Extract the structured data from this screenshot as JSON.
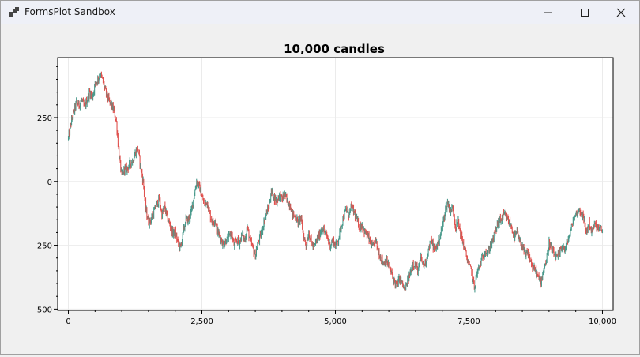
{
  "window": {
    "title": "FormsPlot Sandbox",
    "icons": {
      "app": "formsplot-app-icon",
      "minimize": "minimize-icon",
      "maximize": "maximize-icon",
      "close": "close-icon"
    }
  },
  "chart_data": {
    "type": "candlestick",
    "title": "10,000 candles",
    "xlabel": "",
    "ylabel": "",
    "xlim": [
      -200,
      10200
    ],
    "ylim": [
      -505,
      485
    ],
    "x_ticks": [
      0,
      2500,
      5000,
      7500,
      10000
    ],
    "x_tick_labels": [
      "0",
      "2,500",
      "5,000",
      "7,500",
      "10,000"
    ],
    "y_ticks": [
      250,
      0,
      -250,
      -500
    ],
    "y_tick_labels": [
      "250",
      "0",
      "-250",
      "-500"
    ],
    "grid": true,
    "colors": {
      "up": "#4a9a8c",
      "down": "#e0524f"
    },
    "candle_count": 10000,
    "trace": [
      [
        0,
        170
      ],
      [
        50,
        230
      ],
      [
        100,
        270
      ],
      [
        150,
        310
      ],
      [
        200,
        300
      ],
      [
        250,
        320
      ],
      [
        300,
        290
      ],
      [
        350,
        320
      ],
      [
        400,
        350
      ],
      [
        450,
        330
      ],
      [
        500,
        380
      ],
      [
        550,
        400
      ],
      [
        600,
        420
      ],
      [
        650,
        390
      ],
      [
        700,
        350
      ],
      [
        750,
        320
      ],
      [
        800,
        300
      ],
      [
        850,
        280
      ],
      [
        900,
        230
      ],
      [
        950,
        100
      ],
      [
        1000,
        20
      ],
      [
        1050,
        50
      ],
      [
        1100,
        50
      ],
      [
        1150,
        70
      ],
      [
        1200,
        80
      ],
      [
        1250,
        110
      ],
      [
        1300,
        130
      ],
      [
        1350,
        60
      ],
      [
        1400,
        0
      ],
      [
        1450,
        -110
      ],
      [
        1500,
        -160
      ],
      [
        1550,
        -150
      ],
      [
        1600,
        -120
      ],
      [
        1650,
        -90
      ],
      [
        1700,
        -70
      ],
      [
        1750,
        -130
      ],
      [
        1800,
        -100
      ],
      [
        1850,
        -140
      ],
      [
        1900,
        -170
      ],
      [
        1950,
        -200
      ],
      [
        2000,
        -200
      ],
      [
        2050,
        -240
      ],
      [
        2100,
        -260
      ],
      [
        2150,
        -200
      ],
      [
        2200,
        -150
      ],
      [
        2250,
        -150
      ],
      [
        2300,
        -120
      ],
      [
        2350,
        -60
      ],
      [
        2400,
        0
      ],
      [
        2450,
        -20
      ],
      [
        2500,
        -60
      ],
      [
        2550,
        -90
      ],
      [
        2600,
        -80
      ],
      [
        2650,
        -130
      ],
      [
        2700,
        -160
      ],
      [
        2750,
        -150
      ],
      [
        2800,
        -200
      ],
      [
        2850,
        -220
      ],
      [
        2900,
        -250
      ],
      [
        2950,
        -230
      ],
      [
        3000,
        -220
      ],
      [
        3050,
        -200
      ],
      [
        3100,
        -250
      ],
      [
        3150,
        -230
      ],
      [
        3200,
        -240
      ],
      [
        3250,
        -210
      ],
      [
        3300,
        -230
      ],
      [
        3350,
        -180
      ],
      [
        3400,
        -230
      ],
      [
        3450,
        -260
      ],
      [
        3500,
        -290
      ],
      [
        3550,
        -240
      ],
      [
        3600,
        -210
      ],
      [
        3650,
        -170
      ],
      [
        3700,
        -130
      ],
      [
        3750,
        -100
      ],
      [
        3800,
        -40
      ],
      [
        3850,
        -60
      ],
      [
        3900,
        -80
      ],
      [
        3950,
        -50
      ],
      [
        4000,
        -70
      ],
      [
        4050,
        -50
      ],
      [
        4100,
        -80
      ],
      [
        4150,
        -90
      ],
      [
        4200,
        -130
      ],
      [
        4250,
        -140
      ],
      [
        4300,
        -160
      ],
      [
        4350,
        -140
      ],
      [
        4400,
        -210
      ],
      [
        4450,
        -250
      ],
      [
        4500,
        -200
      ],
      [
        4550,
        -240
      ],
      [
        4600,
        -260
      ],
      [
        4650,
        -230
      ],
      [
        4700,
        -210
      ],
      [
        4750,
        -180
      ],
      [
        4800,
        -200
      ],
      [
        4850,
        -220
      ],
      [
        4900,
        -250
      ],
      [
        4950,
        -230
      ],
      [
        5000,
        -250
      ],
      [
        5050,
        -230
      ],
      [
        5100,
        -180
      ],
      [
        5150,
        -140
      ],
      [
        5200,
        -110
      ],
      [
        5250,
        -130
      ],
      [
        5300,
        -100
      ],
      [
        5350,
        -120
      ],
      [
        5400,
        -150
      ],
      [
        5450,
        -180
      ],
      [
        5500,
        -170
      ],
      [
        5550,
        -200
      ],
      [
        5600,
        -210
      ],
      [
        5650,
        -240
      ],
      [
        5700,
        -260
      ],
      [
        5750,
        -230
      ],
      [
        5800,
        -270
      ],
      [
        5850,
        -300
      ],
      [
        5900,
        -320
      ],
      [
        5950,
        -310
      ],
      [
        6000,
        -330
      ],
      [
        6050,
        -360
      ],
      [
        6100,
        -390
      ],
      [
        6150,
        -410
      ],
      [
        6200,
        -380
      ],
      [
        6250,
        -400
      ],
      [
        6300,
        -430
      ],
      [
        6350,
        -390
      ],
      [
        6400,
        -360
      ],
      [
        6450,
        -320
      ],
      [
        6500,
        -330
      ],
      [
        6550,
        -350
      ],
      [
        6600,
        -300
      ],
      [
        6650,
        -330
      ],
      [
        6700,
        -310
      ],
      [
        6750,
        -260
      ],
      [
        6800,
        -230
      ],
      [
        6850,
        -270
      ],
      [
        6900,
        -250
      ],
      [
        6950,
        -220
      ],
      [
        7000,
        -180
      ],
      [
        7050,
        -120
      ],
      [
        7100,
        -80
      ],
      [
        7150,
        -120
      ],
      [
        7200,
        -100
      ],
      [
        7250,
        -180
      ],
      [
        7300,
        -160
      ],
      [
        7350,
        -210
      ],
      [
        7400,
        -250
      ],
      [
        7450,
        -290
      ],
      [
        7500,
        -330
      ],
      [
        7550,
        -350
      ],
      [
        7600,
        -420
      ],
      [
        7650,
        -360
      ],
      [
        7700,
        -330
      ],
      [
        7750,
        -300
      ],
      [
        7800,
        -270
      ],
      [
        7850,
        -280
      ],
      [
        7900,
        -250
      ],
      [
        7950,
        -230
      ],
      [
        8000,
        -190
      ],
      [
        8050,
        -160
      ],
      [
        8100,
        -150
      ],
      [
        8150,
        -130
      ],
      [
        8200,
        -140
      ],
      [
        8250,
        -160
      ],
      [
        8300,
        -180
      ],
      [
        8350,
        -220
      ],
      [
        8400,
        -200
      ],
      [
        8450,
        -240
      ],
      [
        8500,
        -250
      ],
      [
        8550,
        -290
      ],
      [
        8600,
        -280
      ],
      [
        8650,
        -310
      ],
      [
        8700,
        -340
      ],
      [
        8750,
        -350
      ],
      [
        8800,
        -380
      ],
      [
        8850,
        -390
      ],
      [
        8900,
        -340
      ],
      [
        8950,
        -310
      ],
      [
        9000,
        -240
      ],
      [
        9050,
        -270
      ],
      [
        9100,
        -290
      ],
      [
        9150,
        -300
      ],
      [
        9200,
        -280
      ],
      [
        9250,
        -250
      ],
      [
        9300,
        -270
      ],
      [
        9350,
        -230
      ],
      [
        9400,
        -200
      ],
      [
        9450,
        -150
      ],
      [
        9500,
        -130
      ],
      [
        9550,
        -110
      ],
      [
        9600,
        -120
      ],
      [
        9650,
        -150
      ],
      [
        9700,
        -200
      ],
      [
        9750,
        -160
      ],
      [
        9800,
        -200
      ],
      [
        9850,
        -170
      ],
      [
        9900,
        -180
      ],
      [
        9950,
        -190
      ],
      [
        10000,
        -190
      ]
    ]
  }
}
